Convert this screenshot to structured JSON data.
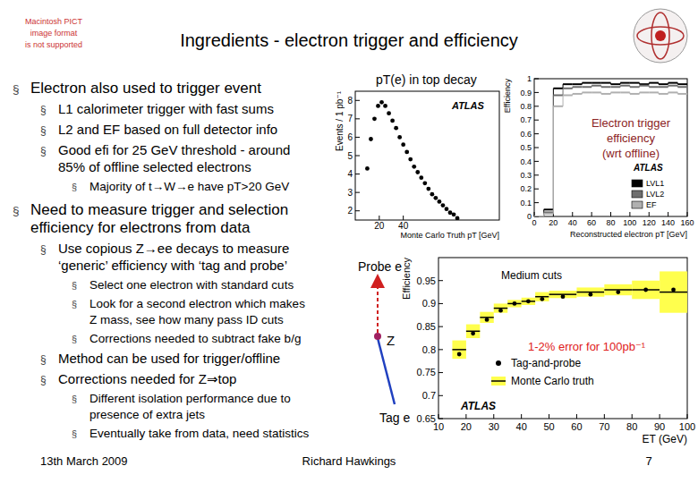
{
  "slide": {
    "title": "Ingredients - electron trigger and efficiency",
    "logo_text": [
      "Macintosh PICT",
      "image format",
      "is not supported"
    ],
    "bullet_symbol": "§",
    "bullets": [
      {
        "text": [
          "Electron also used to trigger event"
        ],
        "sub": [
          {
            "text": [
              "L1 calorimeter trigger with fast sums"
            ]
          },
          {
            "text": [
              "L2 and EF based on full detector info"
            ]
          },
          {
            "text": [
              "Good efi for 25 GeV threshold - around",
              "85% of offline selected electrons"
            ],
            "sub": [
              {
                "text": [
                  "Majority of t→W→e have pT>20 GeV"
                ]
              }
            ]
          }
        ]
      },
      {
        "text": [
          "Need to measure trigger and selection",
          "efficiency for electrons from data"
        ],
        "sub": [
          {
            "text": [
              "Use copious Z→ee decays to measure",
              "‘generic’ efficiency with ‘tag and probe’"
            ],
            "sub": [
              {
                "text": [
                  "Select one electron with standard cuts"
                ]
              },
              {
                "text": [
                  "Look for a second electron which makes",
                  "Z mass, see how many pass ID cuts"
                ]
              },
              {
                "text": [
                  "Corrections needed to subtract fake b/g"
                ]
              }
            ]
          },
          {
            "text": [
              "Method can be used for trigger/offline"
            ]
          },
          {
            "text": [
              "Corrections needed for Z⇒top"
            ],
            "sub": [
              {
                "text": [
                  "Different isolation performance due to",
                  "presence of extra jets"
                ]
              },
              {
                "text": [
                  "Eventually take from data, need statistics"
                ]
              }
            ]
          }
        ]
      }
    ],
    "diagram": {
      "probe": "Probe e",
      "z": "Z",
      "tag": "Tag e"
    },
    "footer": {
      "date": "13th March 2009",
      "author": "Richard Hawkings",
      "page": 7
    }
  },
  "chart_data": [
    {
      "type": "scatter",
      "title": "pT(e) in top decay",
      "x_label": "Monte Carlo Truth pT [GeV]",
      "y_label": "Events / 1 pb⁻¹",
      "annotation": "ATLAS",
      "x": [
        10,
        13,
        16,
        19,
        22,
        25,
        28,
        31,
        34,
        37,
        40,
        43,
        46,
        49,
        52,
        55,
        58,
        61,
        64,
        67,
        70,
        73,
        76,
        79,
        82,
        85
      ],
      "values": [
        4.3,
        5.9,
        7.0,
        7.7,
        7.9,
        7.7,
        7.3,
        6.9,
        6.5,
        6.0,
        5.6,
        5.2,
        4.8,
        4.4,
        4.1,
        3.8,
        3.5,
        3.2,
        2.9,
        2.7,
        2.5,
        2.3,
        2.1,
        1.9,
        1.8,
        1.6
      ],
      "color": "#000000",
      "marker": "circle",
      "xlim": [
        0,
        120
      ],
      "ylim": [
        1.5,
        8.5
      ],
      "xticks": [
        20,
        40
      ],
      "yticks": [
        2,
        3,
        4,
        5,
        6,
        7,
        8
      ]
    },
    {
      "type": "histogram",
      "x_label": "Reconstructed electron pT [GeV]",
      "y_label": "Efficiency",
      "annotation": "ATLAS",
      "note": [
        "Electron trigger",
        "efficiency",
        "(wrt offline)"
      ],
      "bins": [
        0,
        10,
        20,
        30,
        40,
        50,
        60,
        70,
        80,
        90,
        100,
        110,
        120,
        130,
        140,
        150,
        160
      ],
      "series": [
        {
          "name": "LVL1",
          "color": "#000000",
          "values": [
            0,
            0.05,
            0.93,
            0.96,
            0.96,
            0.97,
            0.97,
            0.97,
            0.96,
            0.97,
            0.97,
            0.96,
            0.97,
            0.96,
            0.97,
            0.96
          ]
        },
        {
          "name": "LVL2",
          "color": "#6e6e6e",
          "values": [
            0,
            0.03,
            0.88,
            0.93,
            0.94,
            0.94,
            0.95,
            0.94,
            0.94,
            0.95,
            0.94,
            0.95,
            0.94,
            0.94,
            0.95,
            0.94
          ]
        },
        {
          "name": "EF",
          "color": "#b0b0b0",
          "values": [
            0,
            0.02,
            0.8,
            0.88,
            0.89,
            0.9,
            0.9,
            0.89,
            0.9,
            0.9,
            0.89,
            0.9,
            0.9,
            0.89,
            0.9,
            0.89
          ]
        }
      ],
      "legend": "lower right",
      "xlim": [
        0,
        160
      ],
      "ylim": [
        0,
        1
      ],
      "xticks": [
        0,
        20,
        40,
        60,
        80,
        100,
        120,
        140,
        160
      ],
      "yticks": [
        0,
        0.1,
        0.2,
        0.3,
        0.4,
        0.5,
        0.6,
        0.7,
        0.8,
        0.9,
        1
      ]
    },
    {
      "type": "scatter",
      "title": "Medium cuts",
      "x_label": "ET (GeV)",
      "y_label": "Efficiency",
      "annotation": "ATLAS",
      "note": [
        "1-2% error for 100pb⁻¹"
      ],
      "x": [
        17.5,
        22.5,
        27.5,
        32.5,
        37.5,
        42.5,
        47.5,
        55,
        65,
        75,
        85,
        95
      ],
      "x_err": [
        2.5,
        2.5,
        2.5,
        2.5,
        2.5,
        2.5,
        2.5,
        5,
        5,
        5,
        5,
        5
      ],
      "series": [
        {
          "name": "Tag-and-probe",
          "color": "#000000",
          "marker": "circle",
          "values": [
            0.79,
            0.835,
            0.865,
            0.885,
            0.9,
            0.905,
            0.91,
            0.915,
            0.92,
            0.925,
            0.93,
            0.93
          ]
        },
        {
          "name": "Monte Carlo truth",
          "color": "#ffff4d",
          "line_style": "solid",
          "values": [
            0.8,
            0.84,
            0.87,
            0.89,
            0.9,
            0.905,
            0.915,
            0.92,
            0.925,
            0.93,
            0.93,
            0.925
          ],
          "error": [
            0.02,
            0.015,
            0.012,
            0.01,
            0.008,
            0.008,
            0.01,
            0.008,
            0.01,
            0.012,
            0.02,
            0.045
          ]
        }
      ],
      "legend": "lower center",
      "xlim": [
        10,
        100
      ],
      "ylim": [
        0.65,
        1
      ],
      "xticks": [
        10,
        20,
        30,
        40,
        50,
        60,
        70,
        80,
        90,
        100
      ],
      "yticks": [
        0.65,
        0.7,
        0.75,
        0.8,
        0.85,
        0.9,
        0.95
      ]
    }
  ]
}
